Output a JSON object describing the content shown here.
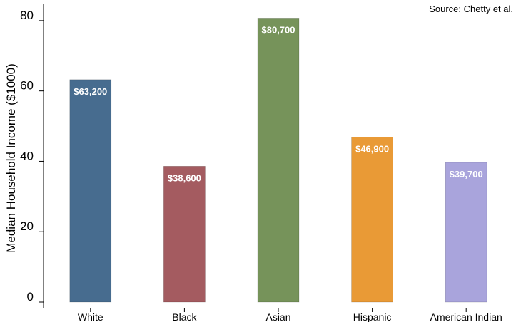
{
  "chart_data": {
    "type": "bar",
    "categories": [
      "White",
      "Black",
      "Asian",
      "Hispanic",
      "American Indian"
    ],
    "values": [
      63.2,
      38.6,
      80.7,
      46.9,
      39.7
    ],
    "data_labels": [
      "$63,200",
      "$38,600",
      "$80,700",
      "$46,900",
      "$39,700"
    ],
    "colors": [
      "#476c8f",
      "#a45b60",
      "#76935a",
      "#e99a36",
      "#a9a4dc"
    ],
    "ylabel": "Median Household Income ($1000)",
    "xlabel": "",
    "ylim": [
      0,
      82
    ],
    "yticks": [
      0,
      20,
      40,
      60,
      80
    ],
    "source": "Source: Chetty et al.",
    "grid": false,
    "legend": "none"
  }
}
